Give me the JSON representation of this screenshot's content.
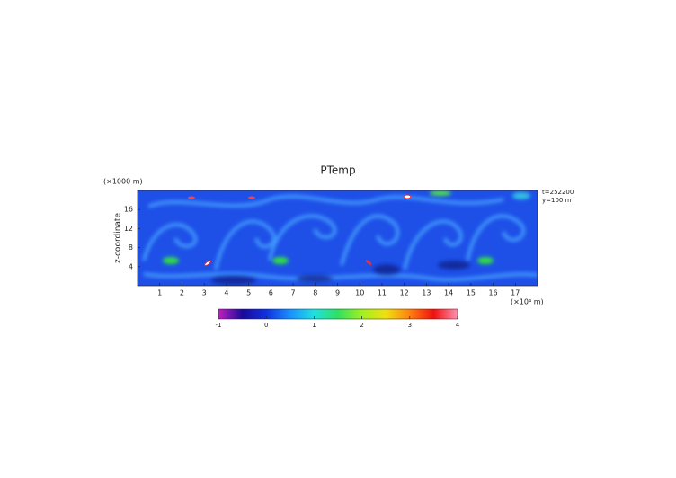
{
  "chart_data": {
    "type": "heatmap",
    "title": "PTemp",
    "xlabel": "(×10⁴ m)",
    "ylabel": "z-coordinate",
    "yunit": "(×1000 m)",
    "annotations": [
      "t=252200",
      "y=100 m"
    ],
    "xlim": [
      0,
      18
    ],
    "xticks": [
      1,
      2,
      3,
      4,
      5,
      6,
      7,
      8,
      9,
      10,
      11,
      12,
      13,
      14,
      15,
      16,
      17
    ],
    "ylim": [
      0,
      20
    ],
    "yticks": [
      4,
      8,
      12,
      16
    ],
    "colorbar": {
      "lim": [
        -1,
        4
      ],
      "ticks": [
        -1,
        0,
        1,
        2,
        3,
        4
      ],
      "colors": [
        "#c020c0",
        "#1a0a9a",
        "#1030e0",
        "#1890ff",
        "#20e0e0",
        "#30e060",
        "#a0f020",
        "#f0e010",
        "#ff8010",
        "#f01010",
        "#ff90b0"
      ]
    }
  }
}
